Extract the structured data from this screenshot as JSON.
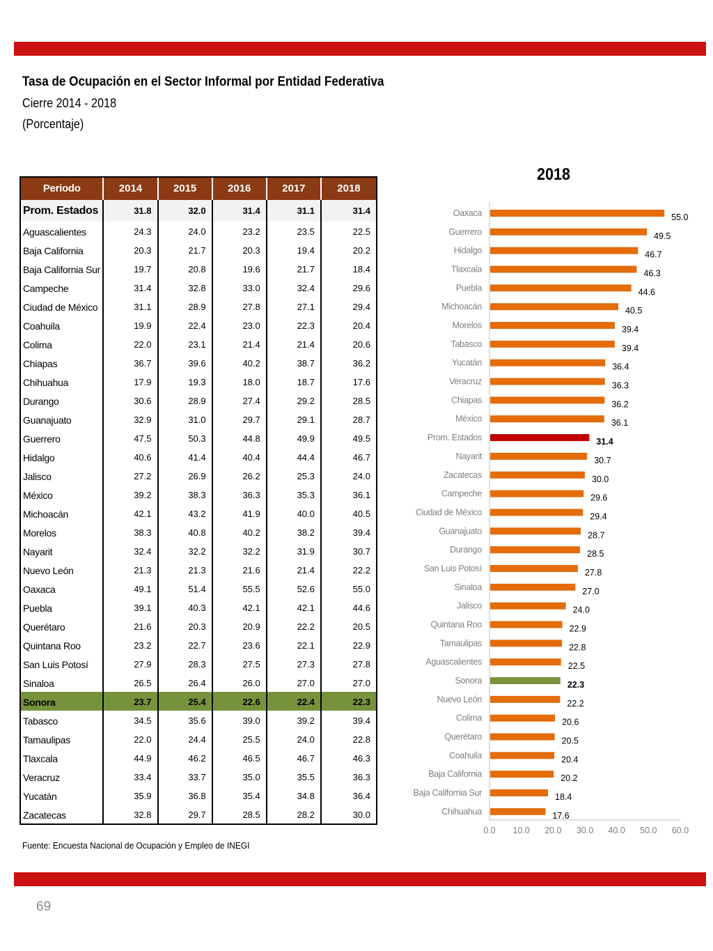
{
  "header": {
    "title": "Tasa de Ocupación en el Sector Informal por Entidad Federativa",
    "subtitle": "Cierre 2014 - 2018",
    "unit": "(Porcentaje)"
  },
  "table": {
    "columns": [
      "Periodo",
      "2014",
      "2015",
      "2016",
      "2017",
      "2018"
    ],
    "average_row": {
      "name": "Prom. Estados",
      "values": [
        "31.8",
        "32.0",
        "31.4",
        "31.1",
        "31.4"
      ]
    },
    "rows": [
      {
        "name": "Aguascalientes",
        "values": [
          "24.3",
          "24.0",
          "23.2",
          "23.5",
          "22.5"
        ]
      },
      {
        "name": "Baja California",
        "values": [
          "20.3",
          "21.7",
          "20.3",
          "19.4",
          "20.2"
        ]
      },
      {
        "name": "Baja California Sur",
        "values": [
          "19.7",
          "20.8",
          "19.6",
          "21.7",
          "18.4"
        ]
      },
      {
        "name": "Campeche",
        "values": [
          "31.4",
          "32.8",
          "33.0",
          "32.4",
          "29.6"
        ]
      },
      {
        "name": "Ciudad de México",
        "values": [
          "31.1",
          "28.9",
          "27.8",
          "27.1",
          "29.4"
        ]
      },
      {
        "name": "Coahuila",
        "values": [
          "19.9",
          "22.4",
          "23.0",
          "22.3",
          "20.4"
        ]
      },
      {
        "name": "Colima",
        "values": [
          "22.0",
          "23.1",
          "21.4",
          "21.4",
          "20.6"
        ]
      },
      {
        "name": "Chiapas",
        "values": [
          "36.7",
          "39.6",
          "40.2",
          "38.7",
          "36.2"
        ]
      },
      {
        "name": "Chihuahua",
        "values": [
          "17.9",
          "19.3",
          "18.0",
          "18.7",
          "17.6"
        ]
      },
      {
        "name": "Durango",
        "values": [
          "30.6",
          "28.9",
          "27.4",
          "29.2",
          "28.5"
        ]
      },
      {
        "name": "Guanajuato",
        "values": [
          "32.9",
          "31.0",
          "29.7",
          "29.1",
          "28.7"
        ]
      },
      {
        "name": "Guerrero",
        "values": [
          "47.5",
          "50.3",
          "44.8",
          "49.9",
          "49.5"
        ]
      },
      {
        "name": "Hidalgo",
        "values": [
          "40.6",
          "41.4",
          "40.4",
          "44.4",
          "46.7"
        ]
      },
      {
        "name": "Jalisco",
        "values": [
          "27.2",
          "26.9",
          "26.2",
          "25.3",
          "24.0"
        ]
      },
      {
        "name": "México",
        "values": [
          "39.2",
          "38.3",
          "36.3",
          "35.3",
          "36.1"
        ]
      },
      {
        "name": "Michoacán",
        "values": [
          "42.1",
          "43.2",
          "41.9",
          "40.0",
          "40.5"
        ]
      },
      {
        "name": "Morelos",
        "values": [
          "38.3",
          "40.8",
          "40.2",
          "38.2",
          "39.4"
        ]
      },
      {
        "name": "Nayarit",
        "values": [
          "32.4",
          "32.2",
          "32.2",
          "31.9",
          "30.7"
        ]
      },
      {
        "name": "Nuevo León",
        "values": [
          "21.3",
          "21.3",
          "21.6",
          "21.4",
          "22.2"
        ]
      },
      {
        "name": "Oaxaca",
        "values": [
          "49.1",
          "51.4",
          "55.5",
          "52.6",
          "55.0"
        ]
      },
      {
        "name": "Puebla",
        "values": [
          "39.1",
          "40.3",
          "42.1",
          "42.1",
          "44.6"
        ]
      },
      {
        "name": "Querétaro",
        "values": [
          "21.6",
          "20.3",
          "20.9",
          "22.2",
          "20.5"
        ]
      },
      {
        "name": "Quintana Roo",
        "values": [
          "23.2",
          "22.7",
          "23.6",
          "22.1",
          "22.9"
        ]
      },
      {
        "name": "San Luis Potosí",
        "values": [
          "27.9",
          "28.3",
          "27.5",
          "27.3",
          "27.8"
        ]
      },
      {
        "name": "Sinaloa",
        "values": [
          "26.5",
          "26.4",
          "26.0",
          "27.0",
          "27.0"
        ]
      },
      {
        "name": "Sonora",
        "values": [
          "23.7",
          "25.4",
          "22.6",
          "22.4",
          "22.3"
        ],
        "highlight": true
      },
      {
        "name": "Tabasco",
        "values": [
          "34.5",
          "35.6",
          "39.0",
          "39.2",
          "39.4"
        ]
      },
      {
        "name": "Tamaulipas",
        "values": [
          "22.0",
          "24.4",
          "25.5",
          "24.0",
          "22.8"
        ]
      },
      {
        "name": "Tlaxcala",
        "values": [
          "44.9",
          "46.2",
          "46.5",
          "46.7",
          "46.3"
        ]
      },
      {
        "name": "Veracruz",
        "values": [
          "33.4",
          "33.7",
          "35.0",
          "35.5",
          "36.3"
        ]
      },
      {
        "name": "Yucatán",
        "values": [
          "35.9",
          "36.8",
          "35.4",
          "34.8",
          "36.4"
        ]
      },
      {
        "name": "Zacatecas",
        "values": [
          "32.8",
          "29.7",
          "28.5",
          "28.2",
          "30.0"
        ]
      }
    ]
  },
  "source": "Fuente: Encuesta Nacional de Ocupación y Empleo de INEGI",
  "page_number": "69",
  "colors": {
    "band": "#cc1111",
    "table_header": "#8b3a14",
    "highlight_row": "#76933c",
    "bar": "#e46c0a",
    "bar_average": "#c00000",
    "bar_highlight": "#77933c"
  },
  "chart_data": {
    "type": "bar",
    "orientation": "horizontal",
    "title": "2018",
    "categories": [
      "Oaxaca",
      "Guerrero",
      "Hidalgo",
      "Tlaxcala",
      "Puebla",
      "Michoacán",
      "Morelos",
      "Tabasco",
      "Yucatán",
      "Veracruz",
      "Chiapas",
      "México",
      "Prom. Estados",
      "Nayarit",
      "Zacatecas",
      "Campeche",
      "Ciudad de México",
      "Guanajuato",
      "Durango",
      "San Luis Potosí",
      "Sinaloa",
      "Jalisco",
      "Quintana Roo",
      "Tamaulipas",
      "Aguascalientes",
      "Sonora",
      "Nuevo León",
      "Colima",
      "Querétaro",
      "Coahuila",
      "Baja California",
      "Baja California Sur",
      "Chihuahua"
    ],
    "values": [
      55.0,
      49.5,
      46.7,
      46.3,
      44.6,
      40.5,
      39.4,
      39.4,
      36.4,
      36.3,
      36.2,
      36.1,
      31.4,
      30.7,
      30.0,
      29.6,
      29.4,
      28.7,
      28.5,
      27.8,
      27.0,
      24.0,
      22.9,
      22.8,
      22.5,
      22.3,
      22.2,
      20.6,
      20.5,
      20.4,
      20.2,
      18.4,
      17.6
    ],
    "value_labels": [
      "55.0",
      "49.5",
      "46.7",
      "46.3",
      "44.6",
      "40.5",
      "39.4",
      "39.4",
      "36.4",
      "36.3",
      "36.2",
      "36.1",
      "31.4",
      "30.7",
      "30.0",
      "29.6",
      "29.4",
      "28.7",
      "28.5",
      "27.8",
      "27.0",
      "24.0",
      "22.9",
      "22.8",
      "22.5",
      "22.3",
      "22.2",
      "20.6",
      "20.5",
      "20.4",
      "20.2",
      "18.4",
      "17.6"
    ],
    "emphasis": {
      "Prom. Estados": "average",
      "Sonora": "highlight"
    },
    "xlim": [
      0,
      60
    ],
    "xticks": [
      "0.0",
      "10.0",
      "20.0",
      "30.0",
      "40.0",
      "50.0",
      "60.0"
    ],
    "grid": false,
    "legend": "none"
  }
}
